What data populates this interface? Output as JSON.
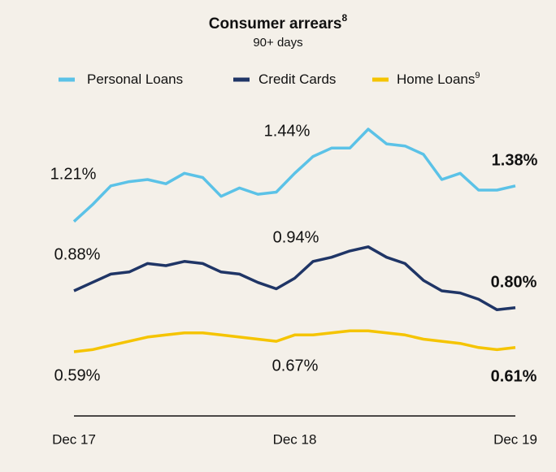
{
  "chart_data": {
    "type": "line",
    "title": "Consumer arrears",
    "title_ref": "8",
    "subtitle": "90+ days",
    "categories": [
      "Dec 17",
      null,
      null,
      null,
      null,
      null,
      null,
      null,
      null,
      null,
      null,
      null,
      "Dec 18",
      null,
      null,
      null,
      null,
      null,
      null,
      null,
      null,
      null,
      null,
      null,
      "Dec 19"
    ],
    "series": [
      {
        "name": "Personal Loans",
        "color": "#5bc2e7",
        "values": [
          1.21,
          1.29,
          1.38,
          1.4,
          1.41,
          1.39,
          1.44,
          1.42,
          1.33,
          1.37,
          1.34,
          1.35,
          1.44,
          1.52,
          1.56,
          1.56,
          1.65,
          1.58,
          1.57,
          1.53,
          1.41,
          1.44,
          1.36,
          1.36,
          1.38
        ]
      },
      {
        "name": "Credit Cards",
        "color": "#1f3566",
        "values": [
          0.88,
          0.92,
          0.96,
          0.97,
          1.01,
          1.0,
          1.02,
          1.01,
          0.97,
          0.96,
          0.92,
          0.89,
          0.94,
          1.02,
          1.04,
          1.07,
          1.09,
          1.04,
          1.01,
          0.93,
          0.88,
          0.87,
          0.84,
          0.79,
          0.8
        ]
      },
      {
        "name": "Home Loans",
        "ref": "9",
        "color": "#f5c400",
        "values": [
          0.59,
          0.6,
          0.62,
          0.64,
          0.66,
          0.67,
          0.68,
          0.68,
          0.67,
          0.66,
          0.65,
          0.64,
          0.67,
          0.67,
          0.68,
          0.69,
          0.69,
          0.68,
          0.67,
          0.65,
          0.64,
          0.63,
          0.61,
          0.6,
          0.61
        ]
      }
    ],
    "annotations": [
      "1.21%",
      "1.44%",
      "1.38%",
      "0.88%",
      "0.94%",
      "0.80%",
      "0.59%",
      "0.67%",
      "0.61%"
    ]
  }
}
